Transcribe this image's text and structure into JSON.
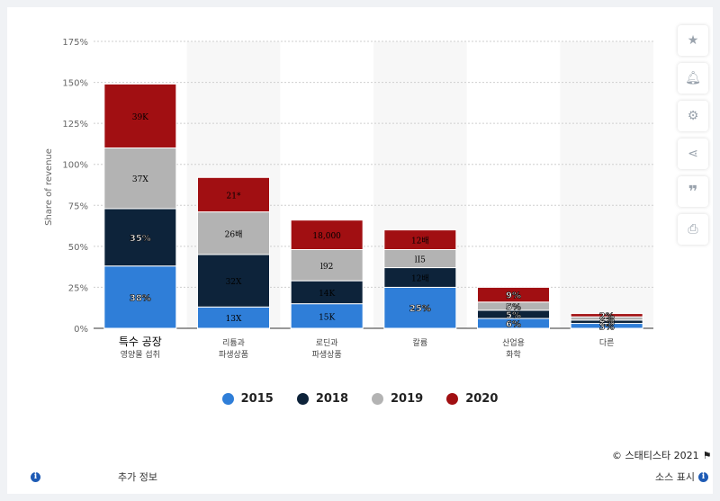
{
  "chart_data": {
    "type": "bar",
    "stacked": true,
    "ylabel": "Share of revenue",
    "ylim": [
      0,
      175
    ],
    "yticks": [
      "0%",
      "25%",
      "50%",
      "75%",
      "100%",
      "125%",
      "150%",
      "175%"
    ],
    "grid": true,
    "legend_position": "bottom",
    "categories": [
      [
        "특수 공장",
        "영양물 섭취"
      ],
      [
        "리튬과",
        "파생상품"
      ],
      [
        "로딘과",
        "파생상품"
      ],
      [
        "칼륨"
      ],
      [
        "산업용",
        "화학"
      ],
      [
        "다른"
      ]
    ],
    "series": [
      {
        "name": "2015",
        "color": "#2f7ed8",
        "values": [
          38,
          13,
          15,
          25,
          6,
          3
        ],
        "labels": [
          "38%",
          "13X",
          "15K",
          "25%",
          "6%",
          "3%"
        ]
      },
      {
        "name": "2018",
        "color": "#0d233a",
        "values": [
          35,
          32,
          14,
          12,
          5,
          2
        ],
        "labels": [
          "35%",
          "32X",
          "14K",
          "12배",
          "5%",
          "2%"
        ]
      },
      {
        "name": "2019",
        "color": "#b3b3b3",
        "values": [
          37,
          26,
          19,
          11,
          5,
          2
        ],
        "labels": [
          "37X",
          "26배",
          "l92",
          "lI5",
          "5%",
          "2%"
        ]
      },
      {
        "name": "2020",
        "color": "#a10f12",
        "values": [
          39,
          21,
          18,
          12,
          9,
          2
        ],
        "labels": [
          "39K",
          "21*",
          "18,000",
          "12배",
          "9%",
          "2%"
        ]
      }
    ]
  },
  "footer": {
    "credit": "© 스태티스타 2021",
    "more_info": "추가 정보",
    "show_source": "소스 표시"
  },
  "toolbar": {
    "icons": [
      "star-icon",
      "bell-icon",
      "gear-icon",
      "share-icon",
      "quote-icon",
      "print-icon"
    ]
  }
}
